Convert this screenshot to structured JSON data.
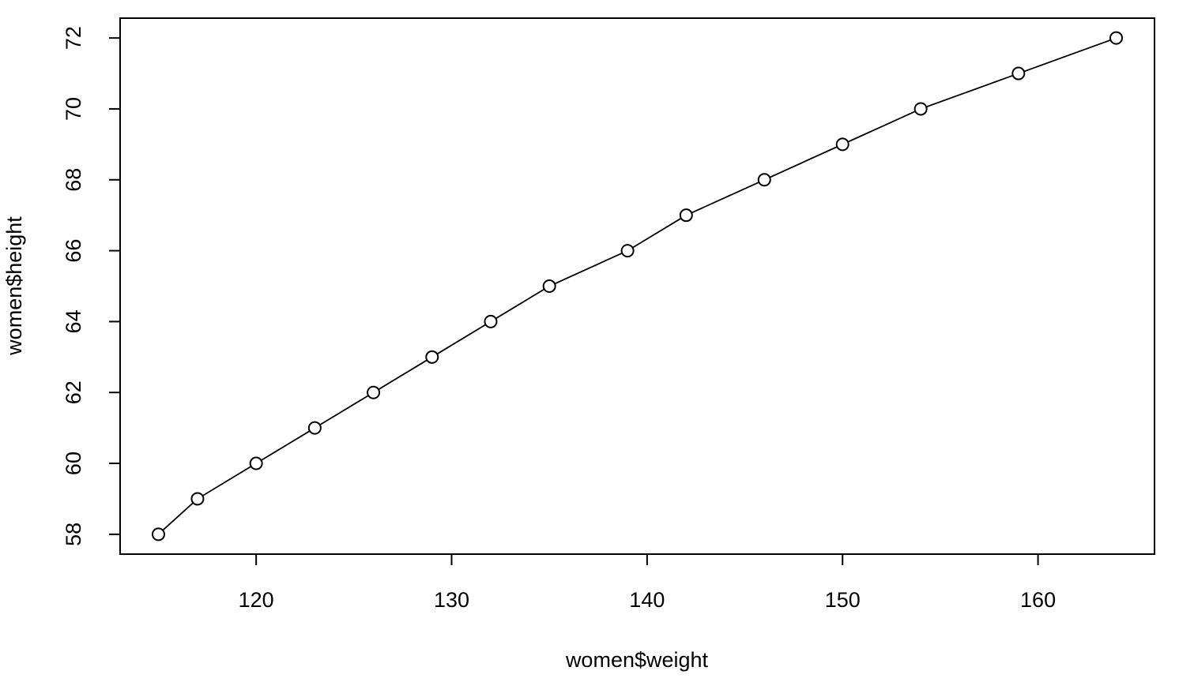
{
  "chart_data": {
    "type": "line",
    "x_label": "women$weight",
    "y_label": "women$height",
    "x": [
      115,
      117,
      120,
      123,
      126,
      129,
      132,
      135,
      139,
      142,
      146,
      150,
      154,
      159,
      164
    ],
    "series": [
      {
        "name": "women$height",
        "color": "#000000",
        "marker": "open-circle",
        "values": [
          58,
          59,
          60,
          61,
          62,
          63,
          64,
          65,
          66,
          67,
          68,
          69,
          70,
          71,
          72
        ]
      }
    ],
    "xlim": [
      113.04,
      165.96
    ],
    "ylim": [
      57.44,
      72.56
    ],
    "xticks": [
      120,
      130,
      140,
      150,
      160
    ],
    "yticks": [
      58,
      60,
      62,
      64,
      66,
      68,
      70,
      72
    ],
    "grid": false
  }
}
